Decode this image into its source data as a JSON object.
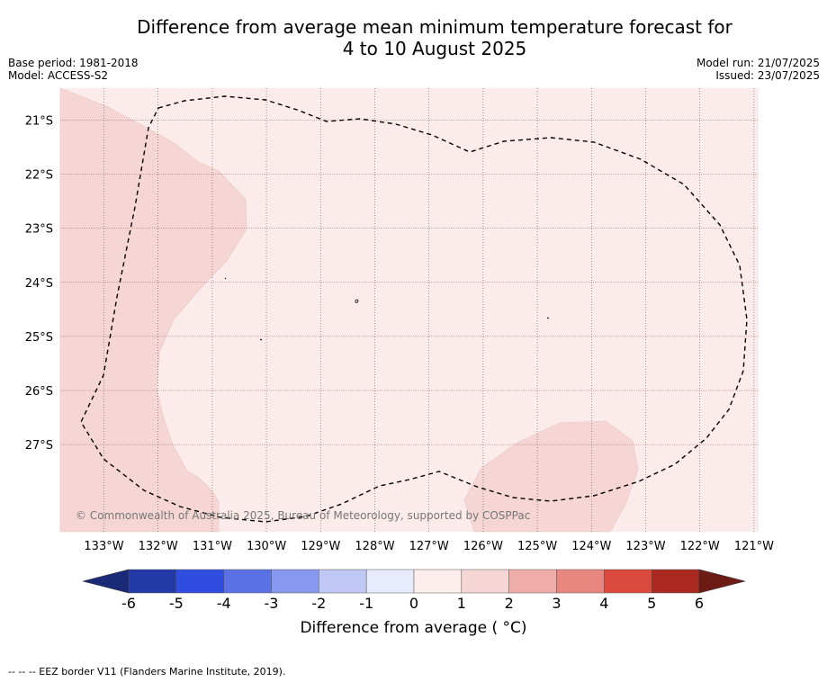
{
  "title_line1": "Difference from average mean minimum temperature forecast for",
  "title_line2": "4 to 10 August 2025",
  "base_period": "Base period: 1981-2018",
  "model": "Model: ACCESS-S2",
  "model_run": "Model run: 21/07/2025",
  "issued": "Issued: 23/07/2025",
  "map": {
    "lon_labels": [
      "133°W",
      "132°W",
      "131°W",
      "130°W",
      "129°W",
      "128°W",
      "127°W",
      "126°W",
      "125°W",
      "124°W",
      "123°W",
      "122°W",
      "121°W"
    ],
    "lat_labels": [
      "21°S",
      "22°S",
      "23°S",
      "24°S",
      "25°S",
      "26°S",
      "27°S"
    ],
    "copyright": "© Commonwealth of Australia 2025, Bureau of Meteorology, supported by COSPPac",
    "background_color": "#fbeceb",
    "anomaly_color": "#f5d6d5",
    "background_anomaly_range": [
      0,
      1
    ],
    "patch_anomaly_range": [
      1,
      2
    ]
  },
  "colorbar": {
    "ticks": [
      "-6",
      "-5",
      "-4",
      "-3",
      "-2",
      "-1",
      "0",
      "1",
      "2",
      "3",
      "4",
      "5",
      "6"
    ],
    "colors": [
      "#2339a8",
      "#2f4ee0",
      "#5a72e6",
      "#8898ee",
      "#c0c8f5",
      "#e8ebfb",
      "#fdeeed",
      "#f5d6d5",
      "#eeada8",
      "#e8877f",
      "#dc4a3f",
      "#aa2a22"
    ],
    "low_extend_color": "#1b2a78",
    "high_extend_color": "#6e1a15",
    "label": "Difference from average ( °C)"
  },
  "footnote": "--  --  -- EEZ border V11 (Flanders Marine Institute, 2019)."
}
